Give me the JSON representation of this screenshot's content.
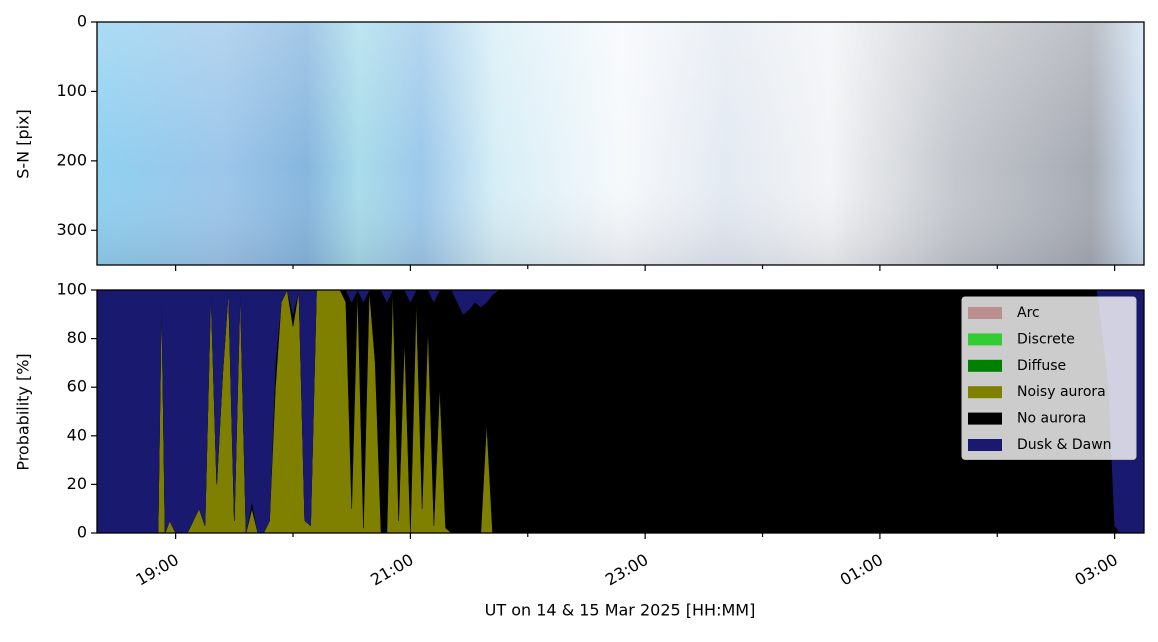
{
  "chart_data": [
    {
      "type": "image",
      "ylabel": "S-N [pix]",
      "ylim": [
        350,
        0
      ],
      "yticks": [
        0,
        100,
        200,
        300
      ]
    },
    {
      "type": "stacked_area",
      "xlabel": "UT on 14 & 15 Mar 2025 [HH:MM]",
      "ylabel": "Probability [%]",
      "xlim": [
        18.33,
        27.25
      ],
      "xticks": [
        {
          "value": 19,
          "label": "19:00"
        },
        {
          "value": 21,
          "label": "21:00"
        },
        {
          "value": 23,
          "label": "23:00"
        },
        {
          "value": 25,
          "label": "01:00"
        },
        {
          "value": 27,
          "label": "03:00"
        }
      ],
      "xminorticks": [
        20,
        22,
        24,
        26
      ],
      "ylim": [
        0,
        100
      ],
      "yticks": [
        0,
        20,
        40,
        60,
        80,
        100
      ],
      "legend": "upper right",
      "x": [
        18.33,
        18.85,
        18.88,
        18.91,
        18.95,
        19.0,
        19.05,
        19.1,
        19.2,
        19.25,
        19.3,
        19.35,
        19.4,
        19.45,
        19.5,
        19.55,
        19.6,
        19.65,
        19.7,
        19.75,
        19.8,
        19.85,
        19.9,
        19.95,
        20.0,
        20.05,
        20.1,
        20.15,
        20.2,
        20.25,
        20.3,
        20.35,
        20.4,
        20.45,
        20.5,
        20.55,
        20.6,
        20.65,
        20.7,
        20.75,
        20.8,
        20.85,
        20.9,
        20.95,
        21.0,
        21.05,
        21.1,
        21.15,
        21.2,
        21.25,
        21.3,
        21.35,
        21.4,
        21.45,
        21.5,
        21.55,
        21.6,
        21.65,
        21.7,
        21.75,
        21.8,
        22.0,
        24.0,
        26.0,
        26.85,
        26.95,
        27.0,
        27.05,
        27.25
      ],
      "series": [
        {
          "name": "Arc",
          "color": "#bc8f8f",
          "values": [
            0,
            0,
            0,
            0,
            0,
            0,
            0,
            0,
            0,
            0,
            0,
            0,
            0,
            0,
            0,
            0,
            0,
            0,
            0,
            0,
            0,
            0,
            0,
            0,
            0,
            0,
            0,
            0,
            0,
            0,
            0,
            0,
            0,
            0,
            0,
            0,
            0,
            0,
            0,
            0,
            0,
            0,
            0,
            0,
            0,
            0,
            0,
            0,
            0,
            0,
            0,
            0,
            0,
            0,
            0,
            0,
            0,
            0,
            0,
            0,
            0,
            0,
            0,
            0,
            0,
            0,
            0,
            0,
            0
          ]
        },
        {
          "name": "Discrete",
          "color": "#32cd32",
          "values": [
            0,
            0,
            0,
            0,
            0,
            0,
            0,
            0,
            0,
            0,
            0,
            0,
            0,
            0,
            0,
            0,
            0,
            0,
            0,
            0,
            0,
            0,
            0,
            0,
            0,
            0,
            0,
            0,
            0,
            0,
            0,
            0,
            0,
            0,
            0,
            0,
            0,
            0,
            0,
            0,
            0,
            0,
            0,
            0,
            0,
            0,
            0,
            0,
            0,
            0,
            0,
            0,
            0,
            0,
            0,
            0,
            0,
            0,
            0,
            0,
            0,
            0,
            0,
            0,
            0,
            0,
            0,
            0,
            0
          ]
        },
        {
          "name": "Diffuse",
          "color": "#008000",
          "values": [
            0,
            0,
            0,
            0,
            0,
            0,
            0,
            0,
            0,
            0,
            0,
            0,
            0,
            0,
            0,
            0,
            0,
            0,
            0,
            0,
            0,
            0,
            0,
            0,
            0,
            0,
            0,
            0,
            0,
            0,
            0,
            0,
            0,
            0,
            0,
            0,
            0,
            0,
            0,
            0,
            0,
            0,
            0,
            0,
            0,
            0,
            0,
            0,
            0,
            0,
            0,
            0,
            0,
            0,
            0,
            0,
            0,
            0,
            0,
            0,
            0,
            0,
            0,
            0,
            0,
            0,
            0,
            0,
            0
          ]
        },
        {
          "name": "Noisy aurora",
          "color": "#808000",
          "values": [
            0,
            0,
            98,
            0,
            5,
            0,
            0,
            0,
            10,
            3,
            100,
            20,
            65,
            100,
            5,
            100,
            0,
            10,
            0,
            0,
            5,
            60,
            95,
            100,
            85,
            100,
            5,
            3,
            100,
            100,
            100,
            100,
            100,
            95,
            10,
            100,
            2,
            100,
            70,
            0,
            0,
            100,
            5,
            80,
            0,
            95,
            10,
            85,
            3,
            60,
            2,
            0,
            0,
            0,
            0,
            0,
            0,
            45,
            0,
            0,
            0,
            0,
            0,
            0,
            0,
            0,
            0,
            0,
            0
          ]
        },
        {
          "name": "No aurora",
          "color": "#000000",
          "values": [
            0,
            0,
            0,
            0,
            0,
            0,
            0,
            0,
            0,
            0,
            0,
            0,
            0,
            0,
            0,
            0,
            0,
            3,
            0,
            0,
            0,
            10,
            0,
            0,
            5,
            0,
            0,
            0,
            0,
            0,
            0,
            0,
            0,
            5,
            85,
            0,
            93,
            0,
            30,
            100,
            95,
            0,
            95,
            20,
            95,
            5,
            90,
            15,
            92,
            40,
            98,
            100,
            95,
            90,
            92,
            95,
            93,
            50,
            98,
            100,
            100,
            100,
            100,
            100,
            100,
            60,
            3,
            0,
            0
          ]
        },
        {
          "name": "Dusk & Dawn",
          "color": "#191970",
          "values": [
            100,
            100,
            2,
            100,
            95,
            100,
            100,
            100,
            90,
            97,
            0,
            80,
            35,
            0,
            95,
            0,
            100,
            87,
            100,
            100,
            95,
            30,
            5,
            0,
            10,
            0,
            95,
            97,
            0,
            0,
            0,
            0,
            0,
            0,
            5,
            0,
            5,
            0,
            0,
            0,
            5,
            0,
            0,
            0,
            5,
            0,
            0,
            0,
            5,
            0,
            0,
            0,
            5,
            10,
            8,
            5,
            7,
            5,
            2,
            0,
            0,
            0,
            0,
            0,
            0,
            40,
            97,
            100,
            100
          ]
        }
      ]
    }
  ]
}
